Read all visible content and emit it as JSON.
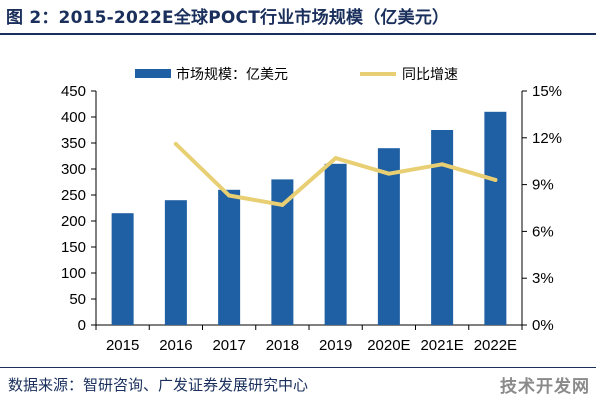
{
  "header": {
    "title": "图 2：2015-2022E全球POCT行业市场规模（亿美元）"
  },
  "footer": {
    "source": "数据来源：智研咨询、广发证券发展研究中心",
    "watermark": "技术开发网"
  },
  "colors": {
    "bar": "#1f5fa3",
    "line": "#e8cf73",
    "title": "#1a2f5c",
    "axis": "#000000"
  },
  "chart_data": {
    "type": "bar",
    "categories": [
      "2015",
      "2016",
      "2017",
      "2018",
      "2019",
      "2020E",
      "2021E",
      "2022E"
    ],
    "series": [
      {
        "name": "市场规模：亿美元",
        "type": "bar",
        "axis": "left",
        "values": [
          215,
          240,
          260,
          280,
          310,
          340,
          375,
          410
        ]
      },
      {
        "name": "同比增速",
        "type": "line",
        "axis": "right",
        "values": [
          null,
          11.6,
          8.3,
          7.7,
          10.7,
          9.7,
          10.3,
          9.3
        ]
      }
    ],
    "y_left": {
      "min": 0,
      "max": 450,
      "step": 50,
      "tick_labels": [
        "0",
        "50",
        "100",
        "150",
        "200",
        "250",
        "300",
        "350",
        "400",
        "450"
      ]
    },
    "y_right": {
      "min": 0,
      "max": 15,
      "step": 3,
      "tick_labels": [
        "0%",
        "3%",
        "6%",
        "9%",
        "12%",
        "15%"
      ]
    },
    "grid": false,
    "legend": "top"
  }
}
